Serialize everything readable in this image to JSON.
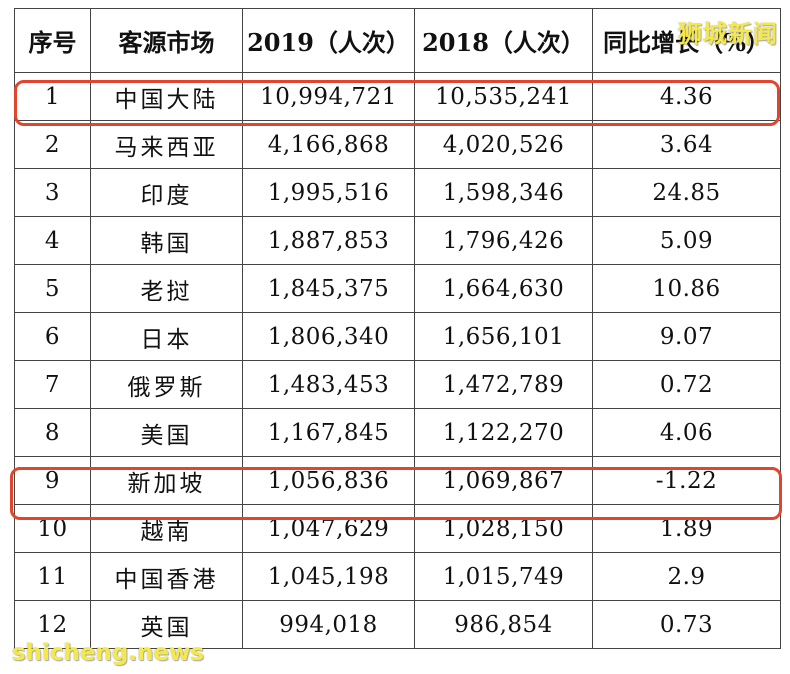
{
  "table": {
    "headers": [
      "序号",
      "客源市场",
      "2019（人次）",
      "2018（人次）",
      "同比增长（%）"
    ],
    "rows": [
      {
        "rank": "1",
        "market": "中国大陆",
        "y2019": "10,994,721",
        "y2018": "10,535,241",
        "growth": "4.36"
      },
      {
        "rank": "2",
        "market": "马来西亚",
        "y2019": "4,166,868",
        "y2018": "4,020,526",
        "growth": "3.64"
      },
      {
        "rank": "3",
        "market": "印度",
        "y2019": "1,995,516",
        "y2018": "1,598,346",
        "growth": "24.85"
      },
      {
        "rank": "4",
        "market": "韩国",
        "y2019": "1,887,853",
        "y2018": "1,796,426",
        "growth": "5.09"
      },
      {
        "rank": "5",
        "market": "老挝",
        "y2019": "1,845,375",
        "y2018": "1,664,630",
        "growth": "10.86"
      },
      {
        "rank": "6",
        "market": "日本",
        "y2019": "1,806,340",
        "y2018": "1,656,101",
        "growth": "9.07"
      },
      {
        "rank": "7",
        "market": "俄罗斯",
        "y2019": "1,483,453",
        "y2018": "1,472,789",
        "growth": "0.72"
      },
      {
        "rank": "8",
        "market": "美国",
        "y2019": "1,167,845",
        "y2018": "1,122,270",
        "growth": "4.06"
      },
      {
        "rank": "9",
        "market": "新加坡",
        "y2019": "1,056,836",
        "y2018": "1,069,867",
        "growth": "-1.22"
      },
      {
        "rank": "10",
        "market": "越南",
        "y2019": "1,047,629",
        "y2018": "1,028,150",
        "growth": "1.89"
      },
      {
        "rank": "11",
        "market": "中国香港",
        "y2019": "1,045,198",
        "y2018": "1,015,749",
        "growth": "2.9"
      },
      {
        "rank": "12",
        "market": "英国",
        "y2019": "994,018",
        "y2018": "986,854",
        "growth": "0.73"
      }
    ]
  },
  "highlights": {
    "rows": [
      "1",
      "9"
    ],
    "color": "#e2452d"
  },
  "watermark": {
    "top": "狮城新闻",
    "bottom": "shicheng.news",
    "color": "#f5e84a"
  }
}
